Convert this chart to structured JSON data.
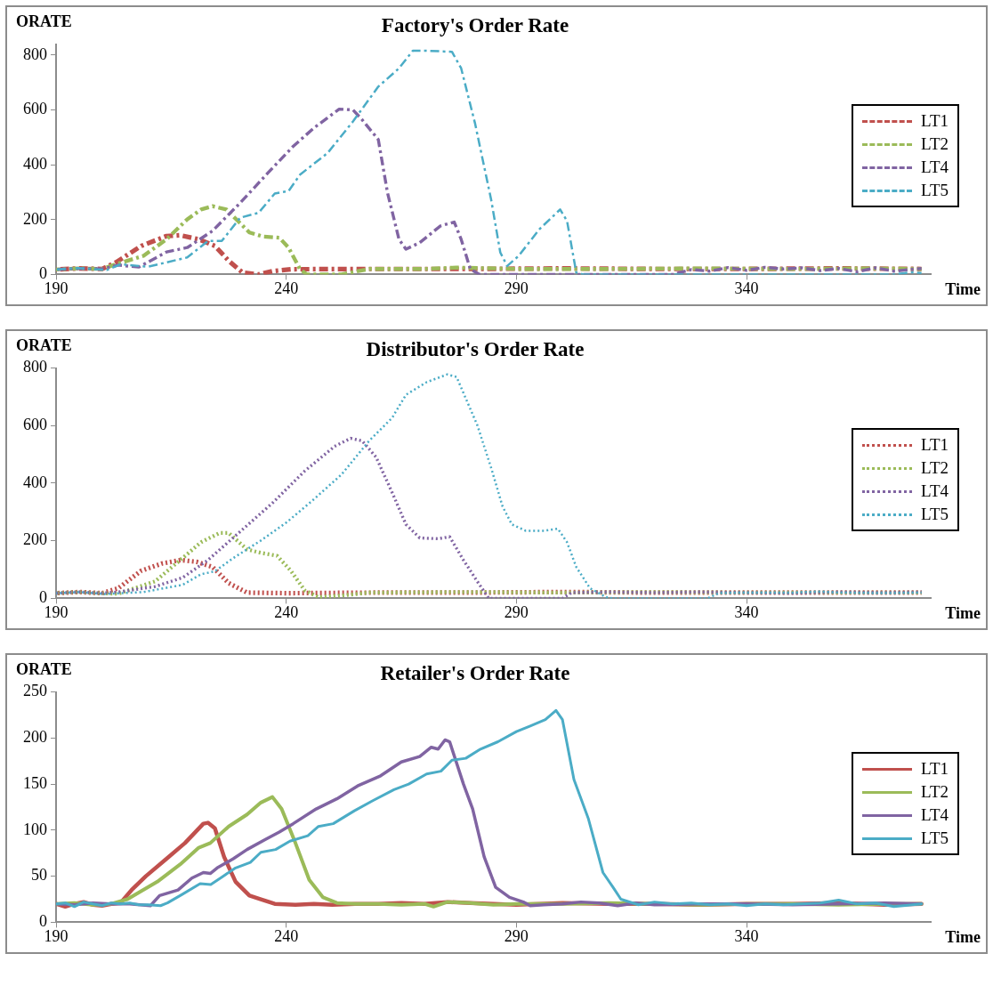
{
  "chart_data": [
    {
      "type": "line",
      "title": "Factory's Order Rate",
      "ylabel": "ORATE",
      "xlabel": "Time",
      "xlim": [
        190,
        380
      ],
      "xticks": [
        190,
        240,
        290,
        340
      ],
      "ylim": [
        0,
        840
      ],
      "yticks": [
        0,
        200,
        400,
        600,
        800
      ],
      "legend": "right",
      "line_style": "dashed",
      "series": [
        {
          "name": "LT1",
          "color": "#c0504d",
          "x": [
            190,
            195,
            200,
            203,
            208.5,
            214,
            217,
            221,
            224.5,
            227.5,
            230.5,
            234,
            237,
            241,
            260,
            280,
            300,
            320,
            340,
            360,
            378
          ],
          "values": [
            18,
            22,
            20,
            44,
            104,
            140,
            143,
            128,
            104,
            50,
            7,
            0,
            12,
            19,
            20,
            20,
            22,
            20,
            20,
            22,
            20
          ]
        },
        {
          "name": "LT2",
          "color": "#9bbb59",
          "x": [
            190,
            195,
            200,
            203,
            209,
            214,
            218.5,
            221.5,
            224,
            227,
            229.5,
            232,
            235,
            238.5,
            240.5,
            243,
            244.5,
            252,
            258,
            270,
            277,
            290,
            310,
            330,
            350,
            365,
            378
          ],
          "values": [
            18,
            22,
            20,
            37,
            68,
            128,
            201,
            237,
            249,
            237,
            195,
            153,
            138,
            134,
            98,
            19,
            0,
            0,
            20,
            20,
            25,
            20,
            20,
            22,
            20,
            22,
            20
          ]
        },
        {
          "name": "LT4",
          "color": "#8064a2",
          "x": [
            190,
            195,
            200,
            203.5,
            208,
            214,
            218.5,
            224,
            230,
            236,
            241.5,
            246,
            251.5,
            254.5,
            256.5,
            260,
            262,
            264.5,
            266,
            269,
            273.5,
            276.5,
            278,
            280,
            282,
            324,
            328,
            332,
            336,
            340,
            344,
            348,
            352,
            356,
            360,
            364,
            368,
            372,
            378
          ],
          "values": [
            18,
            22,
            20,
            34,
            27,
            82,
            98,
            159,
            261,
            370,
            467,
            534,
            603,
            600,
            564,
            492,
            298,
            128,
            92,
            116,
            177,
            191,
            128,
            19,
            0,
            0,
            18,
            12,
            25,
            15,
            26,
            20,
            24,
            14,
            22,
            10,
            24,
            12,
            22
          ]
        },
        {
          "name": "LT5",
          "color": "#4bacc6",
          "x": [
            190,
            195,
            201,
            204,
            210,
            218.5,
            223,
            226,
            230,
            234,
            237.5,
            240.5,
            243,
            249,
            254.5,
            260,
            264.5,
            267.5,
            270.5,
            276,
            278,
            281,
            284.5,
            286.5,
            288,
            290.5,
            295,
            299.5,
            301,
            303,
            304.5,
            372,
            376,
            378
          ],
          "values": [
            18,
            23,
            16,
            37,
            28,
            62,
            122,
            122,
            207,
            225,
            295,
            304,
            364,
            443,
            558,
            685,
            752,
            816,
            816,
            812,
            752,
            552,
            274,
            80,
            31,
            68,
            165,
            237,
            195,
            7,
            0,
            0,
            8,
            5
          ]
        }
      ]
    },
    {
      "type": "line",
      "title": "Distributor's Order Rate",
      "ylabel": "ORATE",
      "xlabel": "Time",
      "xlim": [
        190,
        380
      ],
      "xticks": [
        190,
        240,
        290,
        340
      ],
      "ylim": [
        0,
        800
      ],
      "yticks": [
        0,
        200,
        400,
        600,
        800
      ],
      "legend": "right",
      "line_style": "dotted",
      "series": [
        {
          "name": "LT1",
          "color": "#c0504d",
          "x": [
            190,
            195,
            200,
            203.5,
            208.5,
            213,
            217,
            220.5,
            224,
            227.5,
            231.5,
            240,
            260,
            280,
            300,
            320,
            340,
            360,
            378
          ],
          "values": [
            18,
            22,
            18,
            35,
            96,
            121,
            133,
            127,
            109,
            53,
            20,
            18,
            20,
            20,
            22,
            20,
            20,
            20,
            20
          ]
        },
        {
          "name": "LT2",
          "color": "#9bbb59",
          "x": [
            190,
            195,
            200,
            203.5,
            211.5,
            217.5,
            221.5,
            225.5,
            227.5,
            231.5,
            234.5,
            238,
            241,
            244,
            247,
            252,
            258,
            280,
            300,
            320,
            340,
            360,
            378
          ],
          "values": [
            18,
            22,
            18,
            16,
            59,
            140,
            195,
            227,
            227,
            170,
            158,
            148,
            96,
            28,
            4,
            10,
            20,
            22,
            20,
            22,
            20,
            20,
            20
          ]
        },
        {
          "name": "LT4",
          "color": "#8064a2",
          "x": [
            190,
            195,
            200,
            203.5,
            211.5,
            217.5,
            223,
            230,
            237,
            244,
            250.5,
            254,
            256.5,
            259.5,
            263,
            266,
            269,
            273,
            275.5,
            278.5,
            281.5,
            284,
            300,
            302,
            310,
            320,
            330,
            340,
            350,
            360,
            370,
            378
          ],
          "values": [
            18,
            22,
            18,
            22,
            41,
            72,
            133,
            232,
            331,
            442,
            528,
            556,
            547,
            491,
            368,
            257,
            210,
            207,
            214,
            133,
            59,
            0,
            0,
            20,
            22,
            20,
            22,
            20,
            18,
            22,
            20,
            22
          ]
        },
        {
          "name": "LT5",
          "color": "#4bacc6",
          "x": [
            190,
            195,
            200.5,
            209,
            217.5,
            221.5,
            224.5,
            228.5,
            234.5,
            240,
            245.5,
            252,
            258,
            263,
            266,
            270.5,
            275,
            277,
            281.5,
            284.5,
            287,
            289,
            292,
            296,
            299,
            301,
            303,
            306,
            309.5,
            311,
            331.5,
            334,
            340,
            350,
            356,
            360,
            370,
            378
          ],
          "values": [
            18,
            22,
            15,
            22,
            47,
            84,
            94,
            140,
            201,
            263,
            337,
            430,
            547,
            627,
            707,
            751,
            778,
            769,
            602,
            454,
            319,
            257,
            235,
            235,
            242,
            195,
            109,
            35,
            4,
            0,
            0,
            18,
            20,
            20,
            24,
            20,
            18,
            20
          ]
        }
      ]
    },
    {
      "type": "line",
      "title": "Retailer's Order Rate",
      "ylabel": "ORATE",
      "xlabel": "Time",
      "xlim": [
        190,
        380
      ],
      "xticks": [
        190,
        240,
        290,
        340
      ],
      "ylim": [
        0,
        250
      ],
      "yticks": [
        0,
        50,
        100,
        150,
        200,
        250
      ],
      "legend": "right",
      "line_style": "solid",
      "series": [
        {
          "name": "LT1",
          "color": "#c0504d",
          "x": [
            190,
            192,
            194,
            196,
            198,
            200,
            202,
            204,
            206.4,
            209.5,
            214,
            218,
            222,
            223,
            224.5,
            226.5,
            229,
            232,
            234.5,
            237.5,
            242,
            246,
            250,
            255,
            260,
            265,
            270,
            275,
            280,
            285,
            290,
            295,
            300,
            310,
            320,
            330,
            340,
            350,
            360,
            370,
            378
          ],
          "values": [
            20,
            17,
            20,
            22,
            19,
            18,
            20,
            21,
            35,
            50,
            69,
            86,
            107,
            108,
            102,
            71,
            44,
            29,
            25,
            20,
            19,
            20,
            19,
            20,
            20,
            21,
            20,
            22,
            21,
            20,
            19,
            20,
            21,
            20,
            20,
            19,
            20,
            20,
            21,
            19,
            20
          ]
        },
        {
          "name": "LT2",
          "color": "#9bbb59",
          "x": [
            190,
            194,
            198,
            202,
            205.5,
            212,
            217,
            221,
            223.5,
            227.5,
            231.5,
            234.5,
            237,
            239,
            242,
            245,
            248,
            251,
            255,
            260,
            265,
            270,
            272,
            275,
            280,
            285,
            290,
            300,
            310,
            320,
            330,
            340,
            350,
            360,
            370,
            378
          ],
          "values": [
            20,
            21,
            19,
            20,
            25,
            44,
            63,
            81,
            86,
            104,
            117,
            130,
            136,
            123,
            86,
            46,
            27,
            21,
            20,
            20,
            19,
            20,
            17,
            22,
            21,
            19,
            20,
            20,
            21,
            20,
            19,
            20,
            20,
            19,
            20,
            20
          ]
        },
        {
          "name": "LT4",
          "color": "#8064a2",
          "x": [
            190,
            194,
            198,
            202,
            206,
            210.5,
            212.5,
            216.5,
            219.5,
            222,
            223.5,
            225,
            228.5,
            231.5,
            235.5,
            238.5,
            241.5,
            246.5,
            251,
            255.5,
            260.5,
            265,
            269,
            271.5,
            273,
            274.5,
            275.5,
            278.5,
            280.5,
            283,
            285.5,
            288.5,
            291.5,
            293,
            296,
            300,
            304,
            308,
            312,
            316,
            320,
            330,
            340,
            350,
            360,
            370,
            378
          ],
          "values": [
            20,
            19,
            21,
            20,
            20,
            18,
            29,
            35,
            48,
            54,
            53,
            59,
            69,
            79,
            90,
            98,
            107,
            123,
            134,
            148,
            159,
            174,
            180,
            190,
            188,
            198,
            196,
            150,
            123,
            71,
            38,
            27,
            22,
            18,
            19,
            20,
            22,
            21,
            18,
            21,
            19,
            20,
            20,
            19,
            20,
            21,
            20
          ]
        },
        {
          "name": "LT5",
          "color": "#4bacc6",
          "x": [
            190,
            192,
            194,
            196,
            198,
            200,
            202,
            204,
            206,
            208,
            210,
            212.7,
            214.2,
            217.3,
            221.3,
            223.6,
            226,
            229,
            232.2,
            234.5,
            237.7,
            240.8,
            244.7,
            247,
            250.2,
            254.8,
            258.8,
            263.4,
            266.6,
            270.5,
            273.6,
            276,
            279,
            282.2,
            286,
            290,
            293,
            296.3,
            298.6,
            300,
            302.5,
            305.6,
            308.8,
            311,
            312.7,
            316.5,
            320,
            324,
            328,
            332,
            336,
            340,
            344,
            348,
            352,
            356,
            360,
            364,
            368,
            372,
            376,
            378
          ],
          "values": [
            20,
            21,
            17,
            22,
            20,
            18,
            21,
            20,
            21,
            19,
            19,
            18,
            21,
            30,
            42,
            41,
            49,
            59,
            65,
            76,
            79,
            88,
            94,
            104,
            107,
            121,
            132,
            144,
            150,
            161,
            164,
            176,
            178,
            188,
            196,
            207,
            213,
            220,
            230,
            220,
            155,
            113,
            54,
            38,
            25,
            19,
            22,
            20,
            21,
            19,
            20,
            18,
            20,
            19,
            20,
            21,
            24,
            20,
            21,
            17,
            19,
            20
          ]
        }
      ]
    }
  ]
}
